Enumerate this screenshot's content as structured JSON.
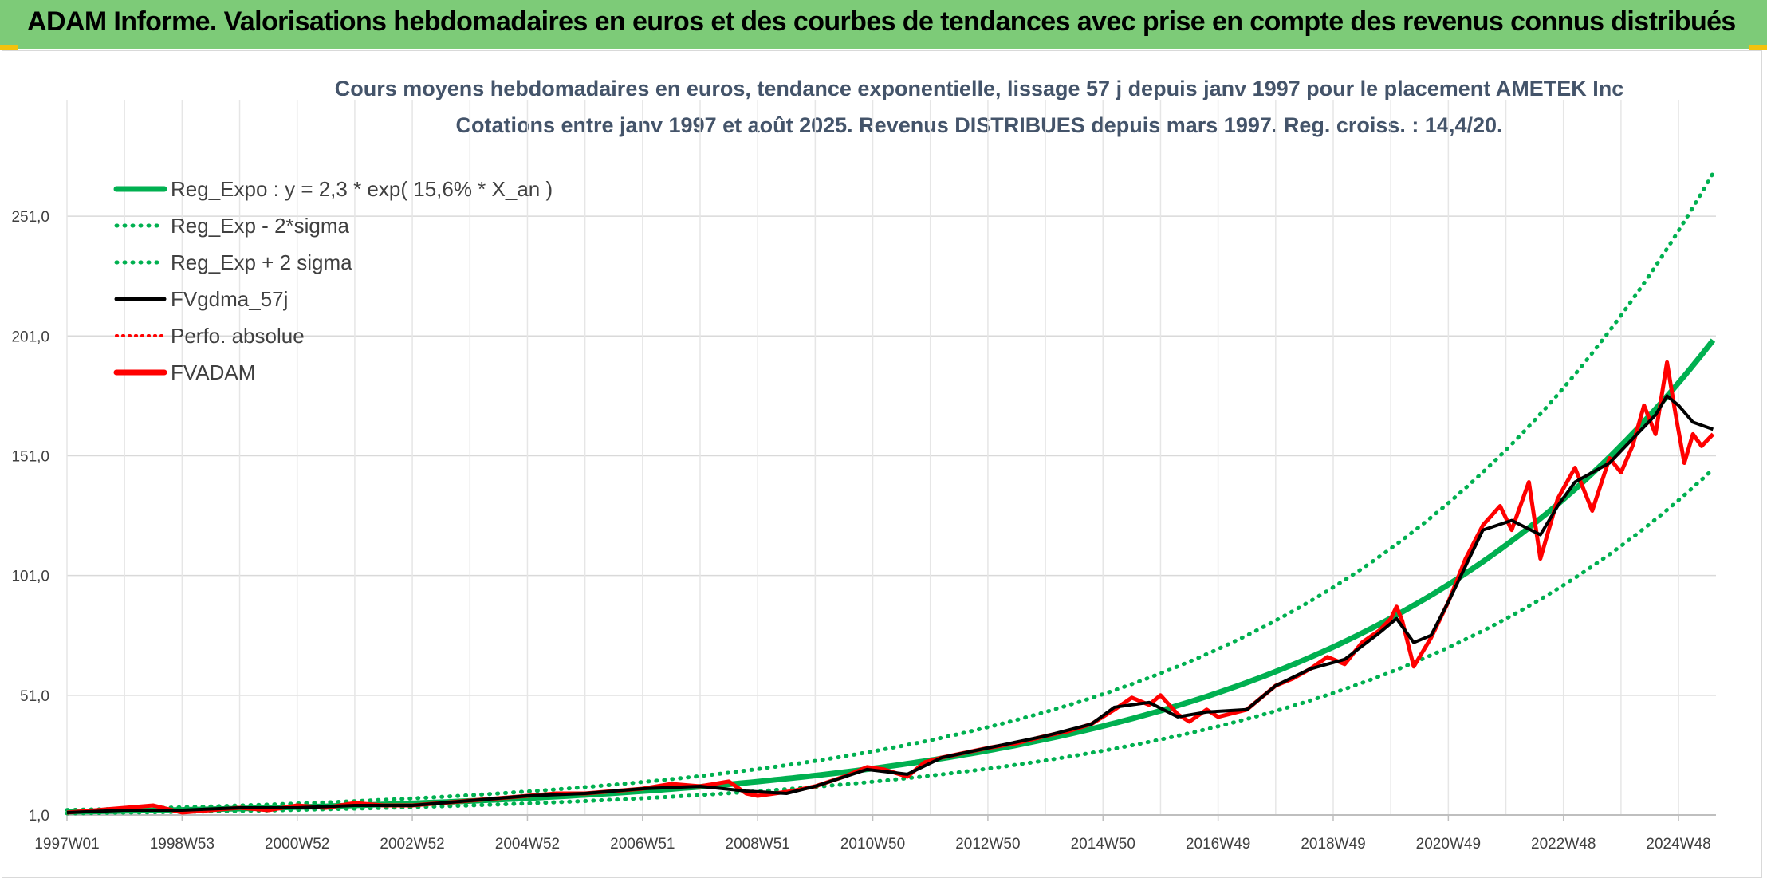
{
  "banner": {
    "title": "ADAM Informe. Valorisations hebdomadaires en euros et des courbes de tendances avec prise en compte des revenus connus distribués"
  },
  "colors": {
    "banner_bg": "#7dcb78",
    "regression": "#00b050",
    "bands": "#00b050",
    "fvgdma": "#000000",
    "perfo": "#ff0000",
    "fvadam": "#ff0000",
    "grid": "#d9d9d9"
  },
  "chart_data": {
    "type": "line",
    "title": "Cours moyens hebdomadaires en euros, tendance exponentielle, lissage 57 j depuis janv 1997 pour le placement AMETEK Inc",
    "subtitle": "Cotations entre janv 1997 et août 2025. Revenus DISTRIBUES depuis mars 1997. Reg. croiss. : 14,4/20.",
    "xlabel": "",
    "ylabel": "",
    "x_tick_labels": [
      "1997W01",
      "1998W53",
      "2000W52",
      "2002W52",
      "2004W52",
      "2006W51",
      "2008W51",
      "2010W50",
      "2012W50",
      "2014W50",
      "2016W49",
      "2018W49",
      "2020W49",
      "2022W48",
      "2024W48"
    ],
    "y_tick_labels": [
      "1,0",
      "51,0",
      "101,0",
      "151,0",
      "201,0",
      "251,0"
    ],
    "ylim": [
      1,
      276
    ],
    "xlim": [
      1997.0,
      2025.65
    ],
    "grid": true,
    "legend_position": "top-left",
    "legend": [
      "Reg_Expo : y = 2,3 * exp( 15,6% *  X_an )",
      "Reg_Exp - 2*sigma",
      "Reg_Exp + 2 sigma",
      "FVgdma_57j",
      "Perfo. absolue",
      "FVADAM"
    ],
    "regression": {
      "a": 2.3,
      "b": 0.156
    },
    "bands": {
      "lower_factor": 0.73,
      "upper_factor": 1.35
    },
    "series": [
      {
        "name": "FVADAM",
        "x": [
          1997.0,
          1997.5,
          1998.0,
          1998.5,
          1999.0,
          1999.5,
          2000.0,
          2000.5,
          2001.0,
          2001.5,
          2002.0,
          2002.5,
          2003.0,
          2003.5,
          2004.0,
          2004.5,
          2005.0,
          2005.5,
          2006.0,
          2006.5,
          2007.0,
          2007.5,
          2008.0,
          2008.5,
          2008.8,
          2009.0,
          2009.3,
          2009.6,
          2010.0,
          2010.5,
          2010.9,
          2011.2,
          2011.6,
          2011.9,
          2012.2,
          2012.6,
          2013.0,
          2013.5,
          2014.0,
          2014.4,
          2014.8,
          2015.2,
          2015.5,
          2015.8,
          2016.0,
          2016.3,
          2016.5,
          2016.8,
          2017.0,
          2017.5,
          2018.0,
          2018.3,
          2018.6,
          2018.9,
          2019.2,
          2019.5,
          2019.8,
          2020.0,
          2020.1,
          2020.2,
          2020.4,
          2020.7,
          2021.0,
          2021.3,
          2021.6,
          2021.9,
          2022.1,
          2022.4,
          2022.6,
          2022.9,
          2023.2,
          2023.5,
          2023.8,
          2024.0,
          2024.2,
          2024.4,
          2024.6,
          2024.8,
          2024.95,
          2025.1,
          2025.25,
          2025.4,
          2025.6
        ],
        "values": [
          2,
          3,
          4,
          5,
          2,
          3,
          4,
          3,
          5,
          4,
          6,
          5,
          5,
          6,
          7,
          8,
          9,
          10,
          10,
          11,
          12,
          14,
          13,
          15,
          10,
          9,
          10,
          11,
          13,
          17,
          21,
          20,
          17,
          23,
          25,
          27,
          29,
          31,
          34,
          36,
          39,
          45,
          50,
          47,
          51,
          43,
          40,
          45,
          42,
          45,
          55,
          58,
          62,
          67,
          64,
          73,
          78,
          83,
          88,
          82,
          63,
          75,
          90,
          108,
          122,
          130,
          120,
          140,
          108,
          133,
          146,
          128,
          150,
          144,
          155,
          172,
          160,
          190,
          168,
          148,
          160,
          155,
          160
        ]
      },
      {
        "name": "FVgdma_57j",
        "x": [
          1997.0,
          1998.0,
          1999.0,
          2000.0,
          2001.0,
          2002.0,
          2003.0,
          2004.0,
          2005.0,
          2006.0,
          2007.0,
          2008.0,
          2008.8,
          2009.5,
          2010.0,
          2010.9,
          2011.6,
          2012.2,
          2013.0,
          2014.0,
          2014.8,
          2015.2,
          2015.8,
          2016.3,
          2016.8,
          2017.5,
          2018.0,
          2018.6,
          2019.2,
          2019.8,
          2020.1,
          2020.4,
          2020.7,
          2021.0,
          2021.6,
          2022.1,
          2022.6,
          2022.9,
          2023.2,
          2023.8,
          2024.2,
          2024.6,
          2024.8,
          2025.0,
          2025.25,
          2025.6
        ],
        "values": [
          2,
          3,
          3,
          4,
          4,
          5,
          5,
          7,
          9,
          10,
          12,
          13,
          11,
          10,
          13,
          20,
          18,
          25,
          29,
          34,
          39,
          46,
          48,
          42,
          44,
          45,
          55,
          62,
          66,
          77,
          83,
          73,
          76,
          90,
          120,
          124,
          118,
          130,
          140,
          148,
          158,
          168,
          176,
          172,
          165,
          162
        ]
      }
    ]
  }
}
